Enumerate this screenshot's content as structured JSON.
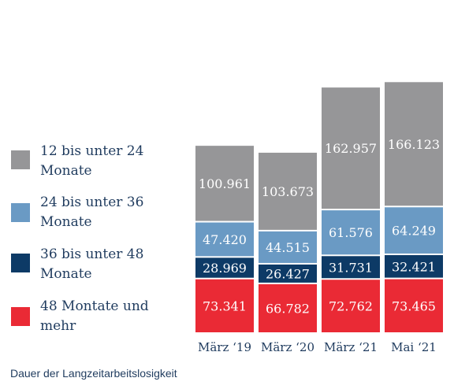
{
  "chart_data": {
    "type": "bar",
    "stacked": true,
    "categories": [
      "März ‘19",
      "März ‘20",
      "März ‘21",
      "Mai ‘21"
    ],
    "series": [
      {
        "name": "48 Montate und mehr",
        "color": "#ea2a35",
        "values": [
          73341,
          66782,
          72762,
          73465
        ],
        "labels": [
          "73.341",
          "66.782",
          "72.762",
          "73.465"
        ]
      },
      {
        "name": "36 bis unter 48 Monate",
        "color": "#0d3a66",
        "values": [
          28969,
          26427,
          31731,
          32421
        ],
        "labels": [
          "28.969",
          "26.427",
          "31.731",
          "32.421"
        ]
      },
      {
        "name": "24 bis unter 36 Monate",
        "color": "#6a9ac4",
        "values": [
          47420,
          44515,
          61576,
          64249
        ],
        "labels": [
          "47.420",
          "44.515",
          "61.576",
          "64.249"
        ]
      },
      {
        "name": "12 bis unter 24 Monate",
        "color": "#969698",
        "values": [
          100961,
          103673,
          162957,
          166123
        ],
        "labels": [
          "100.961",
          "103.673",
          "162.957",
          "166.123"
        ]
      }
    ],
    "grid": false,
    "legend_position": "left"
  },
  "legend": [
    {
      "label": "12 bis unter 24 Monate",
      "color": "#969698"
    },
    {
      "label": "24 bis unter 36 Monate",
      "color": "#6a9ac4"
    },
    {
      "label": "36 bis unter 48 Monate",
      "color": "#0d3a66"
    },
    {
      "label": "48 Montate und mehr",
      "color": "#ea2a35"
    }
  ],
  "caption": "Dauer der Langzeitarbeitslosigkeit"
}
